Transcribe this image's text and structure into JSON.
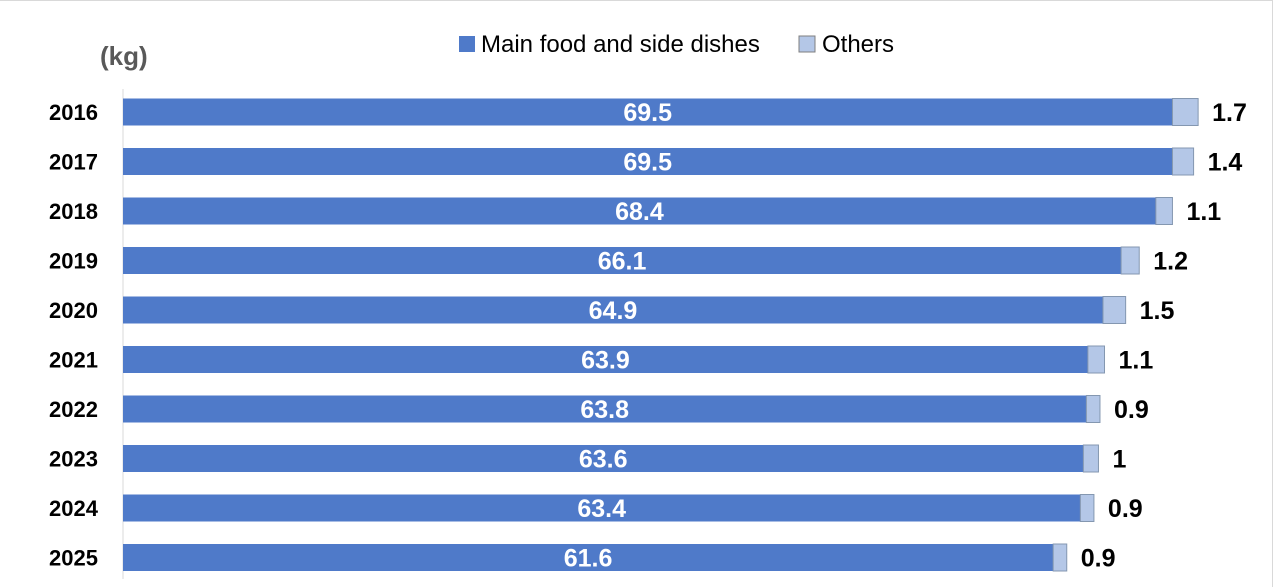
{
  "chart_data": {
    "type": "bar",
    "orientation": "horizontal",
    "stacked": true,
    "unit_label": "(kg)",
    "categories": [
      "2016",
      "2017",
      "2018",
      "2019",
      "2020",
      "2021",
      "2022",
      "2023",
      "2024",
      "2025"
    ],
    "series": [
      {
        "name": "Main food and side dishes",
        "color": "#4f7ac9",
        "values": [
          69.5,
          69.5,
          68.4,
          66.1,
          64.9,
          63.9,
          63.8,
          63.6,
          63.4,
          61.6
        ]
      },
      {
        "name": "Others",
        "color": "#b4c7e7",
        "values": [
          1.7,
          1.4,
          1.1,
          1.2,
          1.5,
          1.1,
          0.9,
          1,
          0.9,
          0.9
        ]
      }
    ],
    "xlim": [
      0,
      75
    ],
    "legend_position": "top-center",
    "grid": false,
    "data_labels": {
      "Main food and side dishes": "inside-center",
      "Others": "outside-end"
    }
  }
}
